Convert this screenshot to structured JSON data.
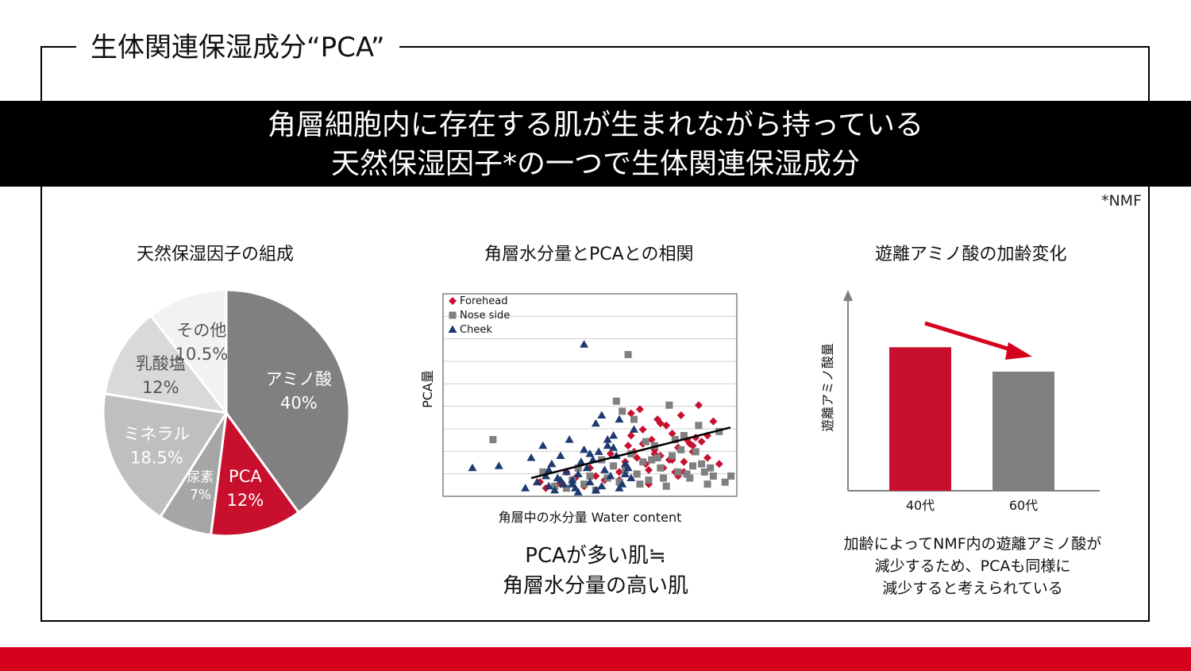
{
  "header": {
    "section_title": "生体関連保湿成分“PCA”",
    "banner_line1": "角層細胞内に存在する肌が生まれながら持っている",
    "banner_line2": "天然保湿因子*の一つで生体関連保湿成分",
    "footnote": "*NMF"
  },
  "colors": {
    "brand_red": "#d6001c",
    "banner_black": "#000000",
    "chart_gray": "#808080"
  },
  "chart_data": [
    {
      "type": "pie",
      "title": "天然保湿因子の組成",
      "slices": [
        {
          "label": "アミノ酸",
          "value_label": "40%",
          "value": 40,
          "color": "#808080",
          "text_color": "#ffffff"
        },
        {
          "label": "PCA",
          "value_label": "12%",
          "value": 12,
          "color": "#c8102e",
          "text_color": "#ffffff"
        },
        {
          "label": "尿素",
          "value_label": "7%",
          "value": 7,
          "color": "#a6a6a6",
          "text_color": "#ffffff"
        },
        {
          "label": "ミネラル",
          "value_label": "18.5%",
          "value": 18.5,
          "color": "#bfbfbf",
          "text_color": "#ffffff"
        },
        {
          "label": "乳酸塩",
          "value_label": "12%",
          "value": 12,
          "color": "#d9d9d9",
          "text_color": "#555555"
        },
        {
          "label": "その他",
          "value_label": "10.5%",
          "value": 10.5,
          "color": "#f2f2f2",
          "text_color": "#555555"
        }
      ]
    },
    {
      "type": "scatter",
      "title": "角層水分量とPCAとの相関",
      "xlabel": "角層中の水分量  Water content",
      "ylabel": "PCA量",
      "xlim": [
        0,
        100
      ],
      "ylim": [
        0,
        100
      ],
      "grid": true,
      "legend": "top-left",
      "series": [
        {
          "name": "Forehead",
          "marker": "diamond",
          "color": "#c8102e",
          "x": [
            33,
            35,
            40,
            42,
            45,
            48,
            50,
            52,
            55,
            57,
            58,
            60,
            62,
            63,
            64,
            65,
            66,
            67,
            68,
            69,
            70,
            71,
            72,
            73,
            74,
            75,
            76,
            77,
            78,
            79,
            80,
            81,
            82,
            83,
            85,
            87,
            88,
            90,
            92,
            94,
            60,
            66,
            70,
            75,
            80,
            85,
            90,
            68,
            72,
            78,
            82,
            86,
            64,
            74,
            84
          ],
          "y": [
            7,
            4,
            6,
            12,
            9,
            5,
            14,
            10,
            8,
            21,
            15,
            12,
            17,
            25,
            30,
            22,
            19,
            43,
            26,
            16,
            13,
            28,
            23,
            38,
            20,
            9,
            35,
            18,
            31,
            12,
            24,
            40,
            17,
            28,
            22,
            45,
            27,
            19,
            37,
            16,
            8,
            11,
            6,
            14,
            10,
            25,
            30,
            33,
            21,
            18,
            12,
            29,
            41,
            36,
            26
          ]
        },
        {
          "name": "Nose side",
          "marker": "square",
          "color": "#808080",
          "x": [
            17,
            34,
            38,
            42,
            44,
            46,
            48,
            50,
            52,
            54,
            56,
            58,
            60,
            62,
            64,
            66,
            68,
            70,
            72,
            74,
            76,
            78,
            80,
            82,
            84,
            86,
            88,
            90,
            92,
            94,
            96,
            98,
            61,
            65,
            69,
            73,
            77,
            81,
            85,
            89,
            63,
            71,
            79,
            87,
            59,
            67,
            75,
            83,
            91
          ],
          "y": [
            28,
            12,
            5,
            4,
            8,
            14,
            6,
            10,
            3,
            18,
            9,
            15,
            7,
            13,
            21,
            11,
            17,
            8,
            25,
            14,
            5,
            20,
            12,
            30,
            9,
            22,
            16,
            6,
            10,
            32,
            7,
            10,
            42,
            38,
            27,
            19,
            45,
            23,
            15,
            12,
            70,
            18,
            28,
            35,
            47,
            6,
            9,
            11,
            14
          ]
        },
        {
          "name": "Cheek",
          "marker": "triangle",
          "color": "#1f3a6e",
          "x": [
            10,
            19,
            28,
            30,
            32,
            34,
            35,
            36,
            37,
            38,
            39,
            40,
            41,
            42,
            43,
            44,
            45,
            46,
            47,
            48,
            49,
            50,
            51,
            52,
            53,
            54,
            55,
            56,
            57,
            58,
            59,
            60,
            61,
            62,
            63,
            64,
            65,
            48,
            52,
            56,
            60,
            44,
            40,
            36,
            58,
            62,
            54,
            50,
            46
          ],
          "y": [
            14,
            15,
            4,
            19,
            7,
            25,
            10,
            13,
            16,
            3,
            9,
            20,
            6,
            12,
            28,
            8,
            4,
            11,
            17,
            23,
            14,
            7,
            18,
            36,
            22,
            5,
            13,
            25,
            10,
            30,
            20,
            38,
            6,
            16,
            14,
            9,
            33,
            75,
            3,
            28,
            4,
            6,
            8,
            5,
            24,
            11,
            40,
            21,
            2
          ]
        }
      ],
      "trendline": {
        "x": [
          30,
          100
        ],
        "y": [
          9,
          34
        ]
      }
    },
    {
      "type": "bar",
      "title": "遊離アミノ酸の加齢変化",
      "ylabel": "遊離アミノ酸量",
      "categories": [
        "40代",
        "60代"
      ],
      "values": [
        100,
        83
      ],
      "colors": [
        "#c8102e",
        "#808080"
      ],
      "ylim": [
        0,
        140
      ],
      "annotation": "downward red arrow"
    }
  ],
  "captions": {
    "scatter_line1": "PCAが多い肌≒",
    "scatter_line2": "角層水分量の高い肌",
    "bar_line1": "加齢によってNMF内の遊離アミノ酸が",
    "bar_line2": "減少するため、PCAも同様に",
    "bar_line3": "減少すると考えられている"
  }
}
